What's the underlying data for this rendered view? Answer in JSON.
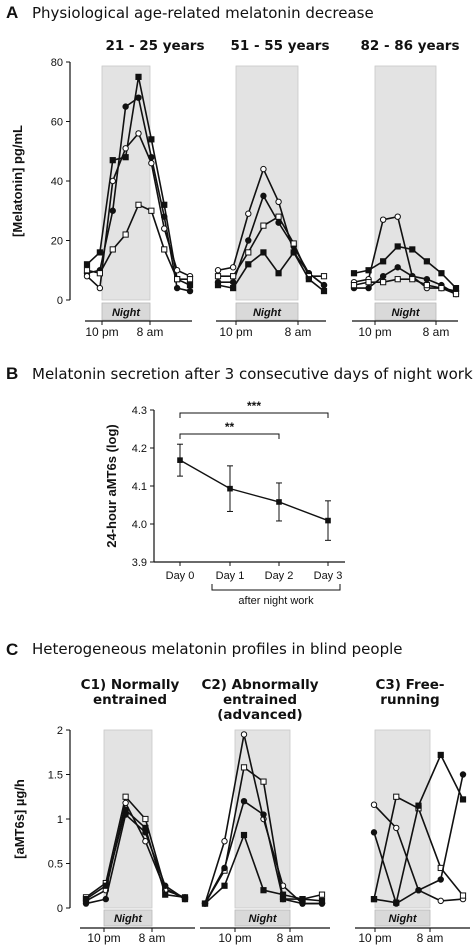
{
  "panels": {
    "a": {
      "letter": "A",
      "title": "Physiological age-related melatonin decrease",
      "groups": [
        "21 - 25 years",
        "51 - 55 years",
        "82 - 86 years"
      ],
      "ylabel": "[Melatonin] pg/mL",
      "night_label": "Night",
      "x_ticks": [
        "10 pm",
        "8 am"
      ]
    },
    "b": {
      "letter": "B",
      "title": "Melatonin secretion after 3 consecutive days of night work",
      "ylabel": "24-hour aMT6s (log)",
      "bracket_label": "after night work",
      "sig_labels": [
        "***",
        "**"
      ]
    },
    "c": {
      "letter": "C",
      "title": "Heterogeneous melatonin profiles in blind people",
      "groups": [
        "C1) Normally entrained",
        "C2) Abnormally entrained (advanced)",
        "C3) Free-running"
      ],
      "ylabel": "[aMT6s] µg/h",
      "night_label": "Night",
      "x_ticks": [
        "10 pm",
        "8 am"
      ]
    }
  },
  "chart_data": [
    {
      "type": "line",
      "panel": "A",
      "ylabel": "[Melatonin] pg/mL",
      "ylim": [
        0,
        80
      ],
      "yticks": [
        0,
        20,
        40,
        60,
        80
      ],
      "x_ticks": [
        "10 pm",
        "8 am"
      ],
      "shaded_label": "Night",
      "groups": [
        {
          "title": "21 - 25 years",
          "series": [
            {
              "marker": "filled-square",
              "values": [
                12,
                16,
                47,
                48,
                75,
                54,
                32,
                7,
                5
              ]
            },
            {
              "marker": "filled-circle",
              "values": [
                9,
                10,
                30,
                65,
                68,
                48,
                28,
                4,
                3
              ]
            },
            {
              "marker": "open-circle",
              "values": [
                8,
                4,
                40,
                51,
                56,
                46,
                24,
                10,
                8
              ]
            },
            {
              "marker": "open-square",
              "values": [
                10,
                9,
                17,
                22,
                32,
                30,
                17,
                7,
                7
              ]
            }
          ]
        },
        {
          "title": "51 - 55 years",
          "series": [
            {
              "marker": "open-circle",
              "values": [
                10,
                11,
                29,
                44,
                33,
                16,
                9,
                5
              ]
            },
            {
              "marker": "filled-circle",
              "values": [
                6,
                6,
                20,
                35,
                26,
                18,
                9,
                5
              ]
            },
            {
              "marker": "open-square",
              "values": [
                8,
                8,
                16,
                25,
                28,
                19,
                8,
                8
              ]
            },
            {
              "marker": "filled-square",
              "values": [
                5,
                4,
                12,
                16,
                9,
                16,
                7,
                3
              ]
            }
          ]
        },
        {
          "title": "82 - 86 years",
          "series": [
            {
              "marker": "open-circle",
              "values": [
                6,
                7,
                27,
                28,
                8,
                4,
                4,
                3
              ]
            },
            {
              "marker": "filled-square",
              "values": [
                9,
                10,
                13,
                18,
                17,
                13,
                9,
                4
              ]
            },
            {
              "marker": "filled-circle",
              "values": [
                4,
                4,
                8,
                11,
                8,
                7,
                5,
                2
              ]
            },
            {
              "marker": "open-square",
              "values": [
                5,
                6,
                6,
                7,
                7,
                5,
                4,
                2
              ]
            }
          ]
        }
      ]
    },
    {
      "type": "line",
      "panel": "B",
      "categories": [
        "Day 0",
        "Day 1",
        "Day 2",
        "Day 3"
      ],
      "values": [
        4.168,
        4.093,
        4.058,
        4.009
      ],
      "error": [
        0.042,
        0.06,
        0.05,
        0.052
      ],
      "ylabel": "24-hour aMT6s (log)",
      "ylim": [
        3.9,
        4.3
      ],
      "yticks": [
        "3.9",
        "4.0",
        "4.1",
        "4.2",
        "4.3"
      ],
      "significance": [
        {
          "from": "Day 0",
          "to": "Day 3",
          "label": "***"
        },
        {
          "from": "Day 0",
          "to": "Day 2",
          "label": "**"
        }
      ],
      "bracket": {
        "from": "Day 1",
        "to": "Day 3",
        "label": "after night work"
      }
    },
    {
      "type": "line",
      "panel": "C",
      "ylabel": "[aMT6s] µg/h",
      "ylim": [
        0,
        2
      ],
      "yticks": [
        "0",
        "0.5",
        "1",
        "1.5",
        "2"
      ],
      "x_ticks": [
        "10 pm",
        "8 am"
      ],
      "shaded_label": "Night",
      "groups": [
        {
          "title": "C1) Normally entrained",
          "series": [
            {
              "marker": "open-square",
              "values": [
                0.12,
                0.28,
                1.25,
                1.0,
                0.22,
                0.1
              ]
            },
            {
              "marker": "open-circle",
              "values": [
                0.08,
                0.2,
                1.18,
                0.75,
                0.2,
                0.12
              ]
            },
            {
              "marker": "filled-square",
              "values": [
                0.1,
                0.25,
                1.1,
                0.9,
                0.15,
                0.12
              ]
            },
            {
              "marker": "filled-circle",
              "values": [
                0.05,
                0.1,
                1.05,
                0.85,
                0.25,
                0.1
              ]
            }
          ]
        },
        {
          "title": "C2) Abnormally entrained (advanced)",
          "series": [
            {
              "marker": "open-circle",
              "values": [
                0.05,
                0.75,
                1.95,
                1.0,
                0.25,
                0.05,
                0.05
              ]
            },
            {
              "marker": "open-square",
              "values": [
                0.05,
                0.42,
                1.58,
                1.42,
                0.1,
                0.1,
                0.15
              ]
            },
            {
              "marker": "filled-circle",
              "values": [
                0.05,
                0.45,
                1.2,
                1.05,
                0.1,
                0.05,
                0.05
              ]
            },
            {
              "marker": "filled-square",
              "values": [
                0.05,
                0.25,
                0.82,
                0.2,
                0.15,
                0.1,
                0.08
              ]
            }
          ]
        },
        {
          "title": "C3) Free-running",
          "series": [
            {
              "marker": "open-circle",
              "values": [
                1.16,
                0.9,
                0.2,
                0.08,
                0.1
              ]
            },
            {
              "marker": "open-square",
              "values": [
                0.1,
                1.25,
                1.12,
                0.45,
                0.14
              ]
            },
            {
              "marker": "filled-circle",
              "values": [
                0.85,
                0.05,
                0.2,
                0.32,
                1.5
              ]
            },
            {
              "marker": "filled-square",
              "values": [
                0.1,
                0.06,
                1.15,
                1.72,
                1.22
              ]
            }
          ]
        }
      ]
    }
  ]
}
